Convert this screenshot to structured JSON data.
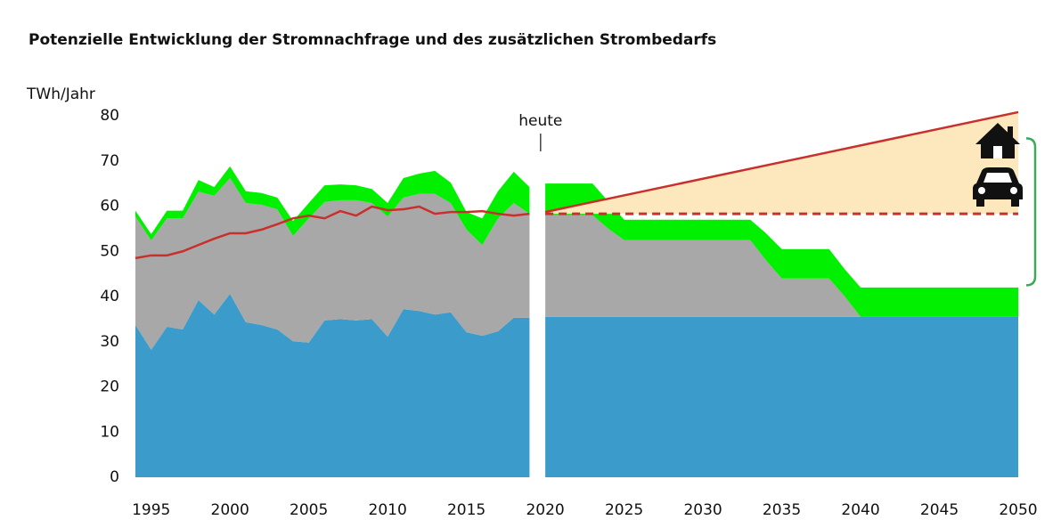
{
  "chart_data": {
    "type": "area",
    "title": "Potenzielle Entwicklung der Stromnachfrage und des zusätzlichen Strombedarfs",
    "y_label": "TWh/Jahr",
    "x": [
      1994,
      1995,
      1996,
      1997,
      1998,
      1999,
      2000,
      2001,
      2002,
      2003,
      2004,
      2005,
      2006,
      2007,
      2008,
      2009,
      2010,
      2011,
      2012,
      2013,
      2014,
      2015,
      2016,
      2017,
      2018,
      2019,
      2020,
      2021,
      2022,
      2023,
      2024,
      2025,
      2026,
      2027,
      2028,
      2029,
      2030,
      2031,
      2032,
      2033,
      2034,
      2035,
      2036,
      2037,
      2038,
      2039,
      2040,
      2041,
      2042,
      2043,
      2044,
      2045,
      2046,
      2047,
      2048,
      2049,
      2050
    ],
    "series": [
      {
        "color": "#3b9bca",
        "values": [
          33.7,
          28.2,
          33.3,
          32.7,
          39.2,
          36,
          40.6,
          34.3,
          33.7,
          32.7,
          30.1,
          29.8,
          34.7,
          35,
          34.7,
          35,
          31.1,
          37.2,
          36.8,
          36,
          36.5,
          32.1,
          31.3,
          32.3,
          35.3,
          35.3,
          35.5,
          35.5,
          35.5,
          35.5,
          35.5,
          35.5,
          35.5,
          35.5,
          35.5,
          35.5,
          35.5,
          35.5,
          35.5,
          35.5,
          35.5,
          35.5,
          35.5,
          35.5,
          35.5,
          35.5,
          35.5,
          35.5,
          35.5,
          35.5,
          35.5,
          35.5,
          35.5,
          35.5,
          35.5,
          35.5,
          35.5
        ]
      },
      {
        "color": "#a8a8a8",
        "values": [
          24.0,
          24.2,
          24.0,
          24.6,
          24.0,
          26.3,
          25.6,
          26.4,
          26.6,
          26.6,
          23.3,
          27.5,
          26.2,
          26.3,
          26.6,
          25.7,
          26.6,
          24.7,
          25.9,
          26.7,
          24.2,
          22.7,
          20.1,
          25.0,
          25.4,
          23.0,
          22.5,
          22.5,
          22.5,
          22.5,
          19.5,
          17,
          17,
          17,
          17,
          17,
          17,
          17,
          17,
          17,
          12.5,
          8.5,
          8.5,
          8.5,
          8.5,
          4.5,
          0,
          0,
          0,
          0,
          0,
          0,
          0,
          0,
          0,
          0,
          0
        ]
      },
      {
        "color": "#00f000",
        "values": [
          1.3,
          1.4,
          1.7,
          1.7,
          2.6,
          1.9,
          2.6,
          2.6,
          2.6,
          2.6,
          3.3,
          3.4,
          3.7,
          3.5,
          3.3,
          3.1,
          3.0,
          4.3,
          4.5,
          5.1,
          4.5,
          3.9,
          5.9,
          6.0,
          6.9,
          5.9,
          7,
          7,
          7,
          7,
          6,
          4.5,
          4.5,
          4.5,
          4.5,
          4.5,
          4.5,
          4.5,
          4.5,
          4.5,
          6,
          6.5,
          6.5,
          6.5,
          6.5,
          6,
          6.5,
          6.5,
          6.5,
          6.5,
          6.5,
          6.5,
          6.5,
          6.5,
          6.5,
          6.5,
          6.5
        ]
      }
    ],
    "trend": {
      "color": "#c8302c",
      "values": [
        48.5,
        49.1,
        49.1,
        50,
        51.4,
        52.8,
        54,
        54,
        54.8,
        56,
        57.3,
        57.9,
        57.3,
        58.9,
        57.9,
        59.9,
        59.1,
        59.3,
        59.9,
        58.3,
        58.7,
        58.7,
        58.9,
        58.3,
        57.9,
        58.3,
        null,
        null,
        null,
        null,
        null,
        null,
        null,
        null,
        null,
        null,
        null,
        null,
        null,
        null,
        null,
        null,
        null,
        null,
        null,
        null,
        null,
        null,
        null,
        null,
        null,
        null,
        null,
        null,
        null,
        null,
        null
      ]
    },
    "projection": {
      "color": "#c8302c",
      "fill": "#fde8bd",
      "x": [
        2020,
        2050
      ],
      "upper": [
        58.7,
        80.8
      ],
      "baseline": [
        58.3,
        58.3
      ]
    },
    "bracket": {
      "color": "#3daa5a",
      "values": [
        42.5,
        75
      ]
    },
    "annotation": {
      "text": "heute",
      "x": 2019.7
    },
    "xlim": [
      1994,
      2050
    ],
    "xticks": [
      1995,
      2000,
      2005,
      2010,
      2015,
      2020,
      2025,
      2030,
      2035,
      2040,
      2045,
      2050
    ],
    "ylim": [
      0,
      80
    ],
    "yticks": [
      0,
      10,
      20,
      30,
      40,
      50,
      60,
      70,
      80
    ]
  }
}
